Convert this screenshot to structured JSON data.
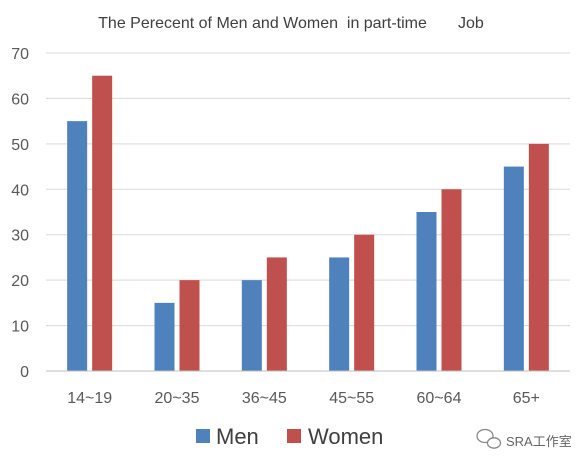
{
  "chart_data": {
    "type": "bar",
    "title": "The Perecent of Men and Women  in part-time       Job",
    "categories": [
      "14~19",
      "20~35",
      "36~45",
      "45~55",
      "60~64",
      "65+"
    ],
    "series": [
      {
        "name": "Men",
        "values": [
          55,
          15,
          20,
          25,
          35,
          45
        ],
        "color": "#4f81bd"
      },
      {
        "name": "Women",
        "values": [
          65,
          20,
          25,
          30,
          40,
          50
        ],
        "color": "#c0504d"
      }
    ],
    "yticks": [
      0,
      10,
      20,
      30,
      40,
      50,
      60,
      70
    ],
    "ylim": [
      0,
      70
    ],
    "xlabel": "",
    "ylabel": "",
    "grid": true,
    "legend_position": "bottom"
  },
  "watermark": {
    "text": "SRA工作室",
    "icon": "wechat-icon"
  }
}
